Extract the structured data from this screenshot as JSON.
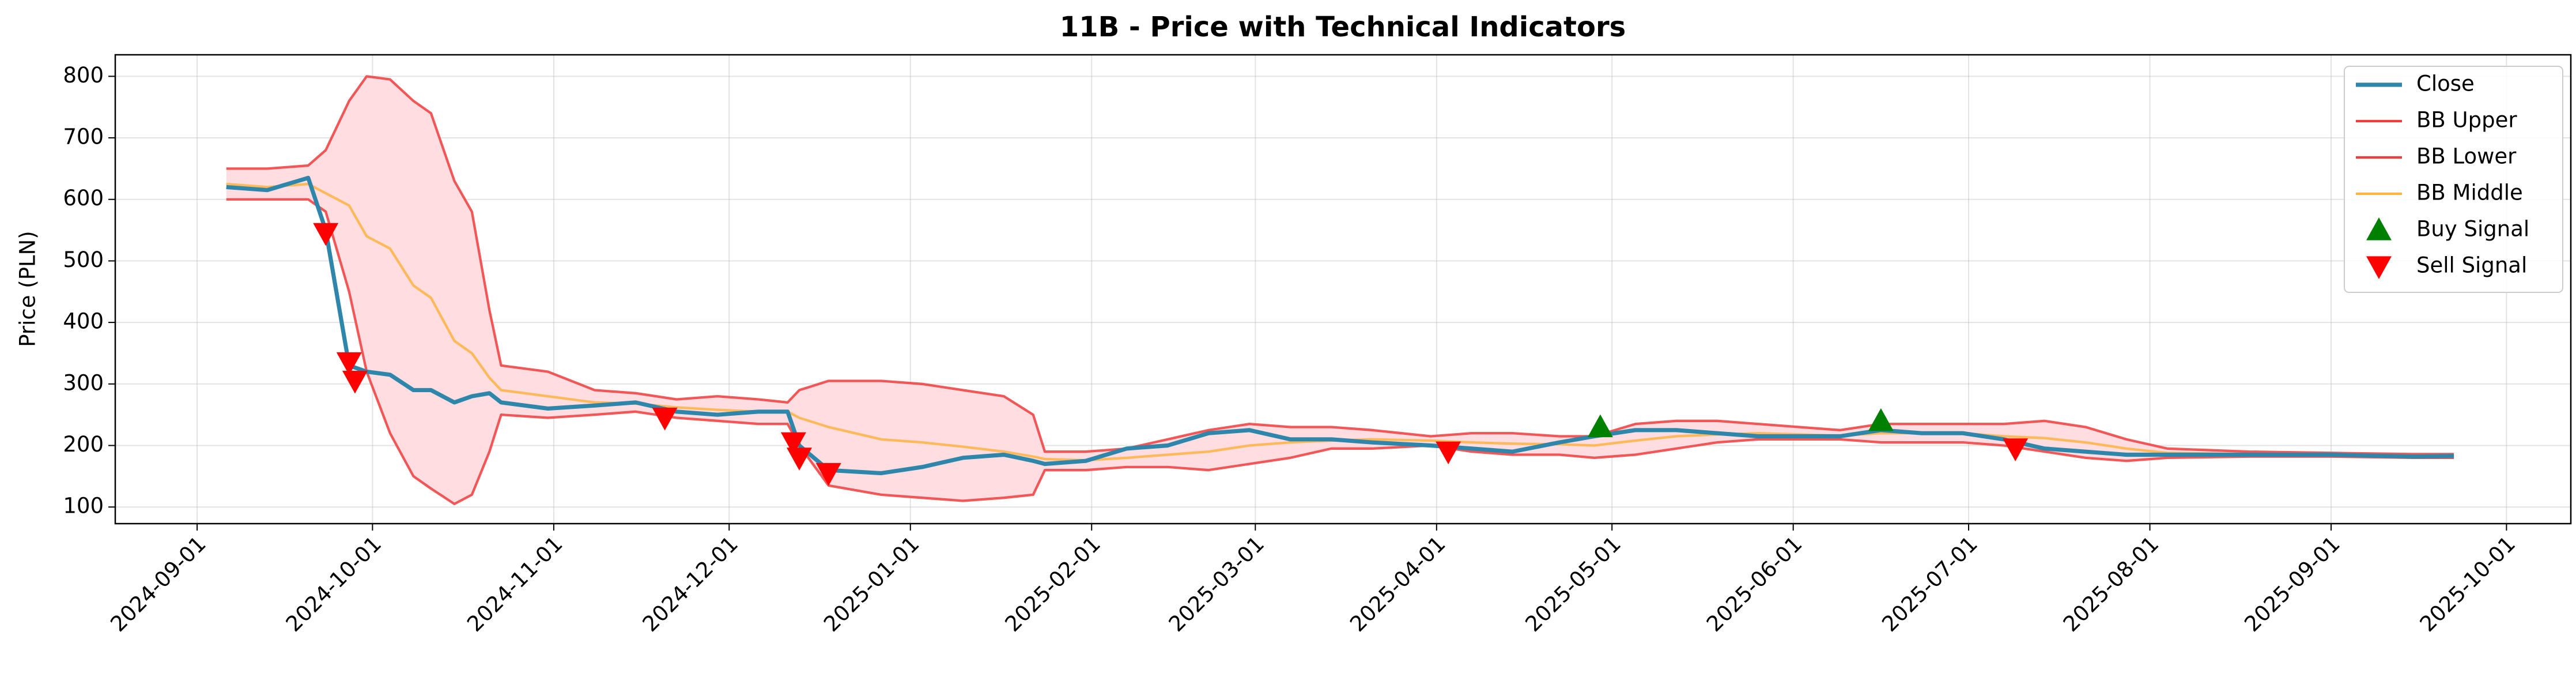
{
  "chart_data": {
    "type": "line",
    "title": "11B - Price with Technical Indicators",
    "y_label": "Price (PLN)",
    "x": [
      "2024-09-06",
      "2024-09-13",
      "2024-09-20",
      "2024-09-23",
      "2024-09-27",
      "2024-09-30",
      "2024-10-04",
      "2024-10-08",
      "2024-10-11",
      "2024-10-15",
      "2024-10-18",
      "2024-10-21",
      "2024-10-23",
      "2024-10-31",
      "2024-11-08",
      "2024-11-15",
      "2024-11-22",
      "2024-11-29",
      "2024-12-06",
      "2024-12-11",
      "2024-12-13",
      "2024-12-18",
      "2024-12-27",
      "2025-01-03",
      "2025-01-10",
      "2025-01-17",
      "2025-01-22",
      "2025-01-24",
      "2025-01-31",
      "2025-02-07",
      "2025-02-14",
      "2025-02-21",
      "2025-02-28",
      "2025-03-07",
      "2025-03-14",
      "2025-03-21",
      "2025-03-31",
      "2025-04-07",
      "2025-04-14",
      "2025-04-22",
      "2025-04-28",
      "2025-05-05",
      "2025-05-12",
      "2025-05-19",
      "2025-05-26",
      "2025-06-02",
      "2025-06-09",
      "2025-06-16",
      "2025-06-23",
      "2025-06-30",
      "2025-07-07",
      "2025-07-14",
      "2025-07-21",
      "2025-07-28",
      "2025-08-04",
      "2025-08-18",
      "2025-09-01",
      "2025-09-15",
      "2025-09-22"
    ],
    "series": [
      {
        "name": "Close",
        "kind": "line",
        "color": "#2e86ab",
        "width": 2.5,
        "values": [
          620,
          615,
          635,
          550,
          330,
          320,
          315,
          290,
          290,
          270,
          280,
          285,
          270,
          260,
          265,
          270,
          255,
          250,
          255,
          255,
          200,
          160,
          155,
          165,
          180,
          185,
          175,
          170,
          175,
          195,
          200,
          220,
          225,
          210,
          210,
          205,
          200,
          195,
          190,
          205,
          215,
          225,
          225,
          220,
          215,
          215,
          215,
          225,
          220,
          220,
          210,
          195,
          190,
          185,
          185,
          185,
          185,
          182,
          183
        ]
      },
      {
        "name": "BB Upper",
        "kind": "line",
        "color": "#f03c3c",
        "width": 1.5,
        "values": [
          650,
          650,
          655,
          680,
          760,
          800,
          795,
          760,
          740,
          630,
          580,
          420,
          330,
          320,
          290,
          285,
          275,
          280,
          275,
          270,
          290,
          305,
          305,
          300,
          290,
          280,
          250,
          190,
          190,
          195,
          210,
          225,
          235,
          230,
          230,
          225,
          215,
          220,
          220,
          215,
          215,
          235,
          240,
          240,
          235,
          230,
          225,
          235,
          235,
          235,
          235,
          240,
          230,
          210,
          195,
          190,
          188,
          186,
          186
        ]
      },
      {
        "name": "BB Lower",
        "kind": "line",
        "color": "#f03c3c",
        "width": 1.5,
        "values": [
          600,
          600,
          600,
          580,
          450,
          320,
          220,
          150,
          130,
          105,
          120,
          190,
          250,
          245,
          250,
          255,
          245,
          240,
          235,
          235,
          200,
          135,
          120,
          115,
          110,
          115,
          120,
          160,
          160,
          165,
          165,
          160,
          170,
          180,
          195,
          195,
          200,
          190,
          185,
          185,
          180,
          185,
          195,
          205,
          210,
          210,
          210,
          205,
          205,
          205,
          200,
          190,
          180,
          175,
          180,
          182,
          182,
          180,
          180
        ]
      },
      {
        "name": "BB Middle",
        "kind": "line",
        "color": "#ffb340",
        "width": 1.5,
        "values": [
          625,
          620,
          625,
          610,
          590,
          540,
          520,
          460,
          440,
          370,
          350,
          310,
          290,
          280,
          270,
          268,
          262,
          258,
          255,
          255,
          245,
          230,
          210,
          205,
          198,
          190,
          182,
          178,
          176,
          180,
          185,
          190,
          200,
          205,
          208,
          210,
          208,
          205,
          203,
          202,
          200,
          208,
          215,
          218,
          220,
          218,
          216,
          220,
          220,
          220,
          215,
          212,
          205,
          195,
          188,
          186,
          185,
          183,
          183
        ]
      },
      {
        "name": "Buy Signal",
        "kind": "marker",
        "marker": "up",
        "color": "#008000",
        "x": [
          "2025-04-29",
          "2025-06-16"
        ],
        "values": [
          230,
          240
        ]
      },
      {
        "name": "Sell Signal",
        "kind": "marker",
        "marker": "down",
        "color": "#ff0000",
        "x": [
          "2024-09-23",
          "2024-09-27",
          "2024-09-28",
          "2024-11-20",
          "2024-12-12",
          "2024-12-13",
          "2024-12-18",
          "2025-04-03",
          "2025-07-09"
        ],
        "values": [
          545,
          335,
          305,
          245,
          205,
          180,
          155,
          190,
          195
        ]
      }
    ],
    "band_fill": "#ffdde1",
    "xlim": [
      "2024-08-18",
      "2025-10-12"
    ],
    "xticks": [
      "2024-09-01",
      "2024-10-01",
      "2024-11-01",
      "2024-12-01",
      "2025-01-01",
      "2025-02-01",
      "2025-03-01",
      "2025-04-01",
      "2025-05-01",
      "2025-06-01",
      "2025-07-01",
      "2025-08-01",
      "2025-09-01",
      "2025-10-01"
    ],
    "ylim": [
      73,
      835
    ],
    "yticks": [
      100,
      200,
      300,
      400,
      500,
      600,
      700,
      800
    ],
    "grid": true,
    "legend": "upper right"
  }
}
